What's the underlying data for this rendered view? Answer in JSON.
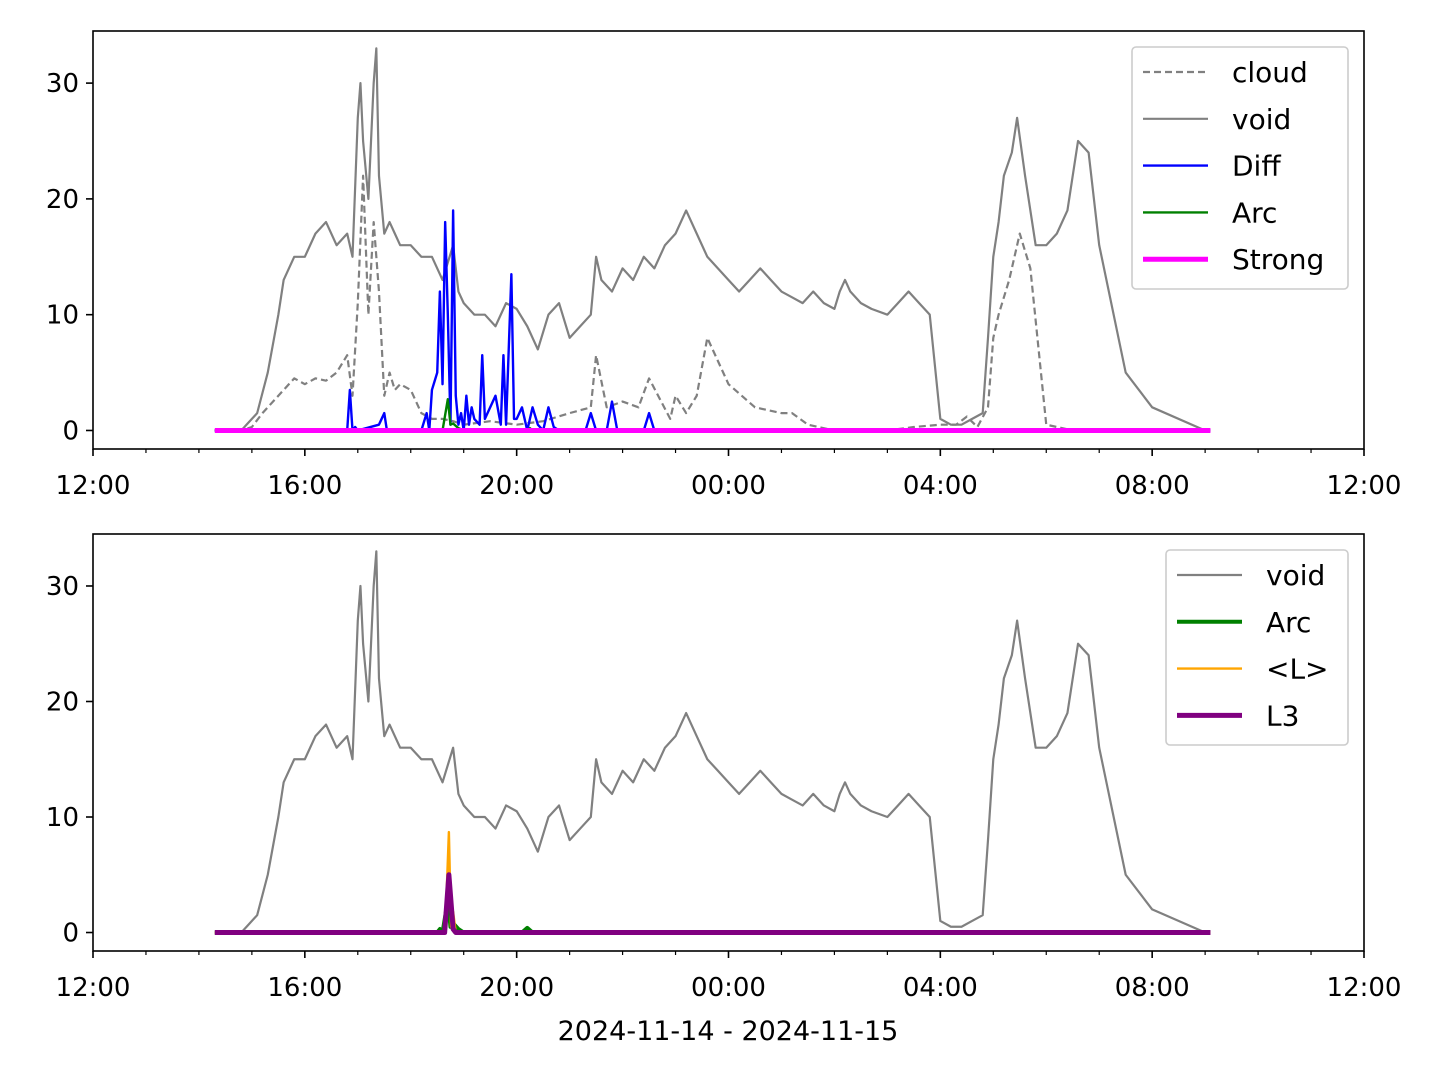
{
  "xlabel": "2024-11-14 - 2024-11-15",
  "chart_data": [
    {
      "type": "line",
      "name": "top-panel",
      "x_ticks": [
        "12:00",
        "16:00",
        "20:00",
        "00:00",
        "04:00",
        "08:00",
        "12:00"
      ],
      "x_tick_hours": [
        12,
        16,
        20,
        24,
        28,
        32,
        36
      ],
      "x_range_hours": [
        12,
        36
      ],
      "ylim": [
        -1.6,
        34.5
      ],
      "y_ticks": [
        0,
        10,
        20,
        30
      ],
      "legend_position": "top-right",
      "legend": [
        "cloud",
        "void",
        "Diff",
        "Arc",
        "Strong"
      ],
      "series": [
        {
          "name": "cloud",
          "color": "#808080",
          "dashed": true,
          "width": 2.2,
          "x": [
            14.3,
            14.8,
            15.0,
            15.2,
            15.5,
            15.8,
            16.0,
            16.2,
            16.4,
            16.6,
            16.8,
            16.9,
            17.0,
            17.1,
            17.2,
            17.3,
            17.4,
            17.5,
            17.6,
            17.7,
            17.8,
            18.0,
            18.2,
            18.4,
            18.6,
            18.8,
            19.0,
            19.5,
            20.0,
            20.5,
            21.0,
            21.4,
            21.5,
            21.7,
            22.0,
            22.3,
            22.5,
            22.9,
            23.0,
            23.2,
            23.4,
            23.6,
            24.0,
            24.5,
            25.0,
            25.2,
            25.5,
            26.0,
            26.5,
            27.0,
            27.5,
            28.0,
            28.3,
            28.5,
            28.7,
            28.9,
            29.0,
            29.1,
            29.3,
            29.5,
            29.7,
            30.0,
            30.5,
            30.8,
            31.0,
            31.5,
            32.0,
            33.0,
            33.1
          ],
          "y": [
            0,
            0,
            0.3,
            1.5,
            3,
            4.5,
            4,
            4.5,
            4.3,
            5,
            6.5,
            3,
            11,
            22,
            10,
            18,
            12,
            3,
            5,
            3.5,
            4,
            3.5,
            1.5,
            1,
            1,
            0.8,
            0.5,
            0.8,
            0.5,
            0.8,
            1.5,
            2,
            6.5,
            2,
            2.5,
            2,
            4.5,
            1,
            3,
            1.5,
            3,
            8,
            4,
            2,
            1.5,
            1.5,
            0.5,
            0,
            0,
            0,
            0.3,
            0.5,
            0.5,
            1.2,
            0.3,
            2,
            8,
            10,
            13,
            17,
            14,
            0.5,
            0,
            0,
            0,
            0,
            0,
            0,
            0
          ]
        },
        {
          "name": "void",
          "color": "#808080",
          "dashed": false,
          "width": 2.2,
          "x": [
            14.3,
            14.8,
            14.9,
            15.1,
            15.3,
            15.5,
            15.6,
            15.8,
            16.0,
            16.2,
            16.4,
            16.6,
            16.8,
            16.9,
            17.0,
            17.05,
            17.1,
            17.2,
            17.3,
            17.35,
            17.4,
            17.5,
            17.6,
            17.7,
            17.8,
            18.0,
            18.2,
            18.4,
            18.6,
            18.8,
            18.9,
            19.0,
            19.2,
            19.4,
            19.6,
            19.8,
            20.0,
            20.2,
            20.4,
            20.6,
            20.8,
            21.0,
            21.2,
            21.4,
            21.5,
            21.6,
            21.8,
            22.0,
            22.2,
            22.4,
            22.6,
            22.8,
            23.0,
            23.2,
            23.4,
            23.6,
            23.8,
            24.0,
            24.2,
            24.4,
            24.6,
            24.8,
            25.0,
            25.2,
            25.4,
            25.6,
            25.8,
            26.0,
            26.1,
            26.2,
            26.3,
            26.5,
            26.7,
            27.0,
            27.2,
            27.4,
            27.6,
            27.8,
            28.0,
            28.2,
            28.4,
            28.6,
            28.8,
            28.9,
            29.0,
            29.1,
            29.2,
            29.35,
            29.45,
            29.6,
            29.8,
            30.0,
            30.2,
            30.4,
            30.6,
            30.8,
            31.0,
            31.5,
            32.0,
            33.0,
            33.1
          ],
          "y": [
            0,
            0,
            0.5,
            1.5,
            5,
            10,
            13,
            15,
            15,
            17,
            18,
            16,
            17,
            15,
            27,
            30,
            25,
            20,
            30,
            33,
            22,
            17,
            18,
            17,
            16,
            16,
            15,
            15,
            13,
            16,
            12,
            11,
            10,
            10,
            9,
            11,
            10.5,
            9,
            7,
            10,
            11,
            8,
            9,
            10,
            15,
            13,
            12,
            14,
            13,
            15,
            14,
            16,
            17,
            19,
            17,
            15,
            14,
            13,
            12,
            13,
            14,
            13,
            12,
            11.5,
            11,
            12,
            11,
            10.5,
            12,
            13,
            12,
            11,
            10.5,
            10,
            11,
            12,
            11,
            10,
            1,
            0.5,
            0.5,
            1,
            1.5,
            8,
            15,
            18,
            22,
            24,
            27,
            22,
            16,
            16,
            17,
            19,
            25,
            24,
            16,
            5,
            2,
            0,
            0
          ]
        },
        {
          "name": "Diff",
          "color": "#0000ff",
          "dashed": false,
          "width": 2.4,
          "x": [
            14.3,
            16.8,
            16.85,
            16.9,
            16.95,
            17.0,
            17.4,
            17.5,
            17.55,
            17.6,
            18.2,
            18.3,
            18.35,
            18.4,
            18.5,
            18.55,
            18.6,
            18.65,
            18.7,
            18.75,
            18.8,
            18.85,
            18.9,
            18.95,
            19.0,
            19.05,
            19.1,
            19.15,
            19.2,
            19.3,
            19.35,
            19.4,
            19.6,
            19.7,
            19.75,
            19.8,
            19.9,
            19.95,
            20.0,
            20.1,
            20.2,
            20.25,
            20.3,
            20.4,
            20.5,
            20.6,
            20.7,
            20.8,
            20.9,
            21.0,
            21.3,
            21.4,
            21.5,
            21.7,
            21.8,
            21.9,
            22.0,
            22.4,
            22.5,
            22.6,
            23.0,
            33.1
          ],
          "y": [
            0,
            0,
            3.5,
            0,
            0.3,
            0,
            0.5,
            1.5,
            0,
            0,
            0,
            1.5,
            0,
            3.5,
            5,
            12,
            4,
            18,
            10,
            0.5,
            19,
            3,
            0.5,
            1.5,
            0,
            3,
            0.5,
            2,
            1,
            0.5,
            6.5,
            1,
            3,
            0.5,
            6.5,
            0.5,
            13.5,
            1,
            1,
            2,
            0,
            1,
            2,
            0.5,
            0,
            2,
            0.3,
            0,
            0,
            0,
            0,
            1.5,
            0,
            0,
            2.5,
            0,
            0,
            0,
            1.5,
            0,
            0,
            0
          ]
        },
        {
          "name": "Arc",
          "color": "#008000",
          "dashed": false,
          "width": 2.4,
          "x": [
            14.3,
            18.6,
            18.7,
            18.75,
            18.8,
            18.9,
            19.0,
            20.2,
            20.25,
            20.3,
            33.1
          ],
          "y": [
            0,
            0,
            2.7,
            0.5,
            0.6,
            0.2,
            0,
            0,
            0.2,
            0,
            0
          ]
        },
        {
          "name": "Strong",
          "color": "#ff00ff",
          "dashed": false,
          "width": 5,
          "x": [
            14.3,
            33.1
          ],
          "y": [
            0,
            0
          ]
        }
      ]
    },
    {
      "type": "line",
      "name": "bottom-panel",
      "x_ticks": [
        "12:00",
        "16:00",
        "20:00",
        "00:00",
        "04:00",
        "08:00",
        "12:00"
      ],
      "x_tick_hours": [
        12,
        16,
        20,
        24,
        28,
        32,
        36
      ],
      "x_range_hours": [
        12,
        36
      ],
      "ylim": [
        -1.6,
        34.5
      ],
      "y_ticks": [
        0,
        10,
        20,
        30
      ],
      "legend_position": "top-right",
      "legend": [
        "void",
        "Arc",
        "<L>",
        "L3"
      ],
      "series": [
        {
          "name": "void",
          "color": "#808080",
          "dashed": false,
          "width": 2.2,
          "x": [
            14.3,
            14.8,
            14.9,
            15.1,
            15.3,
            15.5,
            15.6,
            15.8,
            16.0,
            16.2,
            16.4,
            16.6,
            16.8,
            16.9,
            17.0,
            17.05,
            17.1,
            17.2,
            17.3,
            17.35,
            17.4,
            17.5,
            17.6,
            17.7,
            17.8,
            18.0,
            18.2,
            18.4,
            18.6,
            18.8,
            18.9,
            19.0,
            19.2,
            19.4,
            19.6,
            19.8,
            20.0,
            20.2,
            20.4,
            20.6,
            20.8,
            21.0,
            21.2,
            21.4,
            21.5,
            21.6,
            21.8,
            22.0,
            22.2,
            22.4,
            22.6,
            22.8,
            23.0,
            23.2,
            23.4,
            23.6,
            23.8,
            24.0,
            24.2,
            24.4,
            24.6,
            24.8,
            25.0,
            25.2,
            25.4,
            25.6,
            25.8,
            26.0,
            26.1,
            26.2,
            26.3,
            26.5,
            26.7,
            27.0,
            27.2,
            27.4,
            27.6,
            27.8,
            28.0,
            28.2,
            28.4,
            28.6,
            28.8,
            28.9,
            29.0,
            29.1,
            29.2,
            29.35,
            29.45,
            29.6,
            29.8,
            30.0,
            30.2,
            30.4,
            30.6,
            30.8,
            31.0,
            31.5,
            32.0,
            33.0,
            33.1
          ],
          "y": [
            0,
            0,
            0.5,
            1.5,
            5,
            10,
            13,
            15,
            15,
            17,
            18,
            16,
            17,
            15,
            27,
            30,
            25,
            20,
            30,
            33,
            22,
            17,
            18,
            17,
            16,
            16,
            15,
            15,
            13,
            16,
            12,
            11,
            10,
            10,
            9,
            11,
            10.5,
            9,
            7,
            10,
            11,
            8,
            9,
            10,
            15,
            13,
            12,
            14,
            13,
            15,
            14,
            16,
            17,
            19,
            17,
            15,
            14,
            13,
            12,
            13,
            14,
            13,
            12,
            11.5,
            11,
            12,
            11,
            10.5,
            12,
            13,
            12,
            11,
            10.5,
            10,
            11,
            12,
            11,
            10,
            1,
            0.5,
            0.5,
            1,
            1.5,
            8,
            15,
            18,
            22,
            24,
            27,
            22,
            16,
            16,
            17,
            19,
            25,
            24,
            16,
            5,
            2,
            0,
            0
          ]
        },
        {
          "name": "Arc",
          "color": "#008000",
          "dashed": false,
          "width": 4,
          "x": [
            14.3,
            18.5,
            18.55,
            18.6,
            18.7,
            18.75,
            18.8,
            18.9,
            19.0,
            20.1,
            20.2,
            20.3,
            33.1
          ],
          "y": [
            0,
            0,
            0.3,
            0,
            2.8,
            0.5,
            0.8,
            0.3,
            0,
            0,
            0.4,
            0,
            0
          ]
        },
        {
          "name": "<L>",
          "color": "#ffa500",
          "dashed": false,
          "width": 2.4,
          "x": [
            14.3,
            18.65,
            18.72,
            18.76,
            18.8,
            18.85,
            18.9,
            33.1
          ],
          "y": [
            0,
            0,
            8.7,
            0.5,
            1.8,
            0,
            0,
            0
          ]
        },
        {
          "name": "L3",
          "color": "#800080",
          "dashed": false,
          "width": 5,
          "x": [
            14.3,
            18.64,
            18.72,
            18.8,
            18.85,
            33.1
          ],
          "y": [
            0,
            0,
            5,
            0.3,
            0,
            0
          ]
        }
      ]
    }
  ]
}
